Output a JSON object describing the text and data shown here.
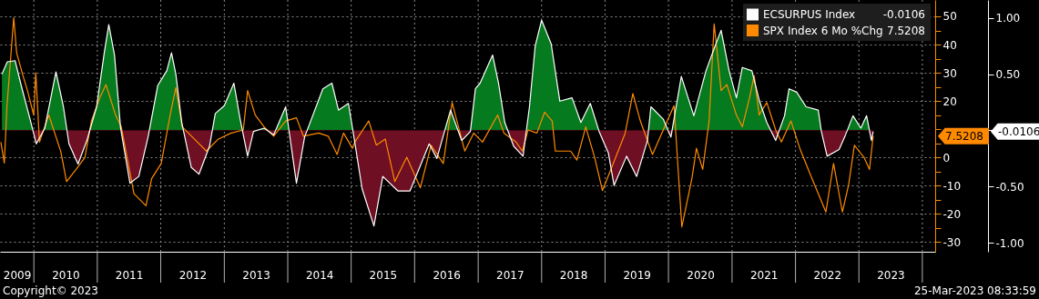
{
  "chart_data": {
    "type": "line",
    "annotations": [
      "-0.0106",
      "7.5208",
      "Copyright© 2023",
      "25-Mar-2023 08:33:59"
    ],
    "xlim": [
      "2009-06-20",
      "2024-03-15"
    ],
    "xticks": [
      {
        "value": "2009-09-25",
        "label": "2009"
      },
      {
        "value": "2010-07-02",
        "label": "2010"
      },
      {
        "value": "2011-07-02",
        "label": "2011"
      },
      {
        "value": "2012-07-02",
        "label": "2012"
      },
      {
        "value": "2013-07-02",
        "label": "2013"
      },
      {
        "value": "2014-07-02",
        "label": "2014"
      },
      {
        "value": "2015-07-02",
        "label": "2015"
      },
      {
        "value": "2016-07-02",
        "label": "2016"
      },
      {
        "value": "2017-07-02",
        "label": "2017"
      },
      {
        "value": "2018-07-02",
        "label": "2018"
      },
      {
        "value": "2019-07-02",
        "label": "2019"
      },
      {
        "value": "2020-07-02",
        "label": "2020"
      },
      {
        "value": "2021-07-02",
        "label": "2021"
      },
      {
        "value": "2022-07-02",
        "label": "2022"
      },
      {
        "value": "2023-07-02",
        "label": "2023"
      },
      {
        "value": "2010-01-01",
        "label": null
      },
      {
        "value": "2011-01-01",
        "label": null
      },
      {
        "value": "2012-01-01",
        "label": null
      },
      {
        "value": "2013-01-01",
        "label": null
      },
      {
        "value": "2014-01-01",
        "label": null
      },
      {
        "value": "2015-01-01",
        "label": null
      },
      {
        "value": "2016-01-01",
        "label": null
      },
      {
        "value": "2017-01-01",
        "label": null
      },
      {
        "value": "2018-01-01",
        "label": null
      },
      {
        "value": "2019-01-01",
        "label": null
      },
      {
        "value": "2020-01-01",
        "label": null
      },
      {
        "value": "2021-01-01",
        "label": null
      },
      {
        "value": "2022-01-01",
        "label": null
      },
      {
        "value": "2023-01-01",
        "label": null
      },
      {
        "value": "2024-01-01",
        "label": null
      }
    ],
    "ylim": [
      -33.5,
      55.8
    ],
    "yticks": [
      -30,
      -20,
      -10,
      0,
      {
        "value": 10,
        "label": null
      },
      20,
      30,
      40,
      50,
      {
        "value": -25,
        "label": null
      },
      {
        "value": -15,
        "label": null
      },
      {
        "value": -5,
        "label": null
      },
      {
        "value": 5,
        "label": null
      },
      {
        "value": 15,
        "label": null
      },
      {
        "value": 25,
        "label": null
      },
      {
        "value": 35,
        "label": null
      },
      {
        "value": 45,
        "label": null
      }
    ],
    "y2lim": [
      -1.08,
      1.16
    ],
    "y2ticks": [
      {
        "value": 1,
        "label": "1.00"
      },
      {
        "value": 0.5,
        "label": "0.50"
      },
      {
        "value": -0.5,
        "label": "-0.50"
      },
      {
        "value": -1,
        "label": "-1.00"
      },
      {
        "value": 0,
        "label": null
      }
    ],
    "grid": true,
    "legend": "top right",
    "series": [
      {
        "name": "ECSURPUS Index",
        "type": "area",
        "axis": "y2",
        "color": "#ffffff",
        "colors": [
          "#067a1e",
          "#067a1e",
          "#067a1e",
          "#067a1e",
          "#067a1e",
          "#6e0f23",
          "#067a1e",
          "#067a1e",
          "#067a1e",
          "#6e0f23",
          "#6e0f23",
          "#6e0f23",
          "#067a1e",
          "#067a1e",
          "#067a1e",
          "#067a1e",
          "#067a1e",
          "#6e0f23",
          "#6e0f23",
          "#6e0f23",
          "#067a1e",
          "#067a1e",
          "#067a1e",
          "#067a1e",
          "#067a1e",
          "#6e0f23",
          "#6e0f23",
          "#6e0f23",
          "#067a1e",
          "#067a1e",
          "#067a1e",
          "#067a1e",
          "#6e0f23",
          "#6e0f23",
          "#067a1e",
          "#6e0f23",
          "#067a1e",
          "#6e0f23",
          "#6e0f23",
          "#067a1e",
          "#067a1e",
          "#067a1e",
          "#067a1e",
          "#6e0f23",
          "#6e0f23",
          "#6e0f23",
          "#6e0f23",
          "#6e0f23",
          "#6e0f23",
          "#6e0f23",
          "#6e0f23",
          "#6e0f23",
          "#067a1e",
          "#6e0f23",
          "#6e0f23",
          "#067a1e",
          "#067a1e",
          "#067a1e",
          "#067a1e",
          "#067a1e",
          "#6e0f23",
          "#6e0f23",
          "#067a1e",
          "#067a1e",
          "#067a1e",
          "#067a1e",
          "#067a1e",
          "#067a1e",
          "#067a1e",
          "#067a1e",
          "#6e0f23",
          "#6e0f23",
          "#6e0f23",
          "#6e0f23",
          "#6e0f23",
          "#6e0f23",
          "#067a1e",
          "#067a1e",
          "#6e0f23",
          "#067a1e",
          "#067a1e",
          "#067a1e",
          "#067a1e",
          "#067a1e",
          "#067a1e",
          "#067a1e",
          "#067a1e",
          "#067a1e",
          "#067a1e",
          "#067a1e",
          "#6e0f23",
          "#067a1e",
          "#067a1e",
          "#067a1e",
          "#067a1e",
          "#067a1e",
          "#6e0f23",
          "#6e0f23",
          "#6e0f23",
          "#6e0f23",
          "#067a1e",
          "#067a1e",
          "#067a1e",
          "#6e0f23",
          "#6e0f23"
        ],
        "x": [
          "2009-07-01",
          "2009-08-01",
          "2009-09-15",
          "2009-10-20",
          "2009-12-10",
          "2010-01-15",
          "2010-03-05",
          "2010-05-08",
          "2010-06-20",
          "2010-07-22",
          "2010-09-12",
          "2010-11-02",
          "2010-12-28",
          "2011-02-10",
          "2011-03-08",
          "2011-04-10",
          "2011-05-15",
          "2011-07-08",
          "2011-08-28",
          "2011-10-20",
          "2011-12-15",
          "2012-02-05",
          "2012-03-03",
          "2012-03-28",
          "2012-05-01",
          "2012-06-25",
          "2012-08-08",
          "2012-10-08",
          "2012-11-10",
          "2013-01-01",
          "2013-02-25",
          "2013-04-02",
          "2013-05-15",
          "2013-06-18",
          "2013-08-18",
          "2013-10-12",
          "2013-12-20",
          "2014-02-20",
          "2014-04-08",
          "2014-07-22",
          "2014-09-12",
          "2014-10-20",
          "2014-12-16",
          "2015-01-15",
          "2015-03-05",
          "2015-05-12",
          "2015-07-02",
          "2015-09-28",
          "2015-12-05",
          "2016-01-22",
          "2016-03-25",
          "2016-05-08",
          "2016-07-26",
          "2016-09-28",
          "2016-11-17",
          "2016-12-16",
          "2017-01-12",
          "2017-03-25",
          "2017-04-28",
          "2017-06-03",
          "2017-07-24",
          "2017-09-16",
          "2017-10-23",
          "2017-11-25",
          "2018-01-01",
          "2018-02-25",
          "2018-04-16",
          "2018-06-25",
          "2018-08-15",
          "2018-10-08",
          "2018-11-28",
          "2019-01-20",
          "2019-02-22",
          "2019-05-05",
          "2019-07-02",
          "2019-09-02",
          "2019-09-22",
          "2019-12-02",
          "2020-01-15",
          "2020-03-15",
          "2020-05-26",
          "2020-08-04",
          "2020-09-25",
          "2020-10-30",
          "2020-12-15",
          "2021-01-26",
          "2021-03-01",
          "2021-04-25",
          "2021-06-08",
          "2021-07-20",
          "2021-09-09",
          "2021-10-30",
          "2021-11-25",
          "2022-01-08",
          "2022-03-03",
          "2022-05-12",
          "2022-05-30",
          "2022-07-02",
          "2022-09-09",
          "2022-10-16",
          "2022-11-28",
          "2023-01-12",
          "2023-02-14",
          "2023-03-14",
          "2023-03-24"
        ],
        "values": [
          0.5,
          0.61,
          0.62,
          0.4,
          0.1,
          -0.12,
          0.02,
          0.52,
          0.21,
          -0.12,
          -0.3,
          -0.09,
          0.21,
          0.69,
          0.94,
          0.67,
          0.02,
          -0.47,
          -0.41,
          -0.06,
          0.4,
          0.53,
          0.69,
          0.5,
          0.07,
          -0.33,
          -0.39,
          -0.14,
          0.15,
          0.22,
          0.42,
          0.1,
          -0.23,
          -0.01,
          0.02,
          -0.04,
          0.21,
          -0.47,
          -0.06,
          0.37,
          0.42,
          0.18,
          0.24,
          -0.04,
          -0.52,
          -0.85,
          -0.41,
          -0.54,
          -0.54,
          -0.36,
          -0.12,
          -0.25,
          0.18,
          -0.09,
          -0.01,
          0.37,
          0.42,
          0.67,
          0.42,
          0.07,
          -0.14,
          -0.23,
          0.21,
          0.75,
          0.98,
          0.77,
          0.26,
          0.29,
          0.07,
          0.24,
          -0.01,
          -0.2,
          -0.49,
          -0.23,
          -0.41,
          -0.09,
          0.21,
          0.1,
          -0.06,
          0.48,
          0.13,
          0.53,
          0.75,
          0.89,
          0.53,
          0.29,
          0.56,
          0.53,
          0.26,
          0.07,
          -0.09,
          0.13,
          0.37,
          0.34,
          0.21,
          0.18,
          -0.01,
          -0.23,
          -0.17,
          -0.04,
          0.13,
          0.02,
          0.13,
          -0.09,
          -0.0106
        ]
      },
      {
        "name": "SPX Index 6 Mo %Chg",
        "color": "#ff8a00",
        "x": [
          "2009-06-25",
          "2009-07-15",
          "2009-07-30",
          "2009-09-07",
          "2009-09-24",
          "2009-10-30",
          "2009-11-25",
          "2009-12-31",
          "2010-01-12",
          "2010-02-02",
          "2010-03-28",
          "2010-06-05",
          "2010-07-08",
          "2010-09-01",
          "2010-10-22",
          "2010-11-28",
          "2011-01-18",
          "2011-02-20",
          "2011-04-16",
          "2011-05-19",
          "2011-07-31",
          "2011-10-08",
          "2011-11-10",
          "2012-01-04",
          "2012-02-24",
          "2012-03-28",
          "2012-05-04",
          "2012-07-12",
          "2012-09-20",
          "2012-11-28",
          "2013-02-10",
          "2013-04-20",
          "2013-05-15",
          "2013-06-28",
          "2013-08-18",
          "2013-10-12",
          "2013-12-20",
          "2014-02-20",
          "2014-04-01",
          "2014-06-28",
          "2014-08-22",
          "2014-10-12",
          "2014-11-18",
          "2015-01-08",
          "2015-01-22",
          "2015-04-12",
          "2015-05-26",
          "2015-07-16",
          "2015-09-09",
          "2015-11-17",
          "2016-02-03",
          "2016-04-05",
          "2016-06-14",
          "2016-08-04",
          "2016-10-16",
          "2016-12-06",
          "2017-01-26",
          "2017-04-23",
          "2017-05-29",
          "2017-08-07",
          "2017-09-12",
          "2017-10-15",
          "2017-12-05",
          "2018-01-18",
          "2018-03-03",
          "2018-03-21",
          "2018-06-17",
          "2018-07-23",
          "2018-09-12",
          "2018-11-02",
          "2018-12-17",
          "2019-02-17",
          "2019-04-27",
          "2019-06-10",
          "2019-07-23",
          "2019-10-01",
          "2019-11-24",
          "2020-02-02",
          "2020-03-18",
          "2020-05-15",
          "2020-06-10",
          "2020-07-16",
          "2020-08-22",
          "2020-09-20",
          "2020-10-30",
          "2020-12-02",
          "2021-01-26",
          "2021-03-01",
          "2021-04-13",
          "2021-05-08",
          "2021-06-06",
          "2021-07-20",
          "2021-09-09",
          "2021-10-12",
          "2021-12-06",
          "2022-01-26",
          "2022-03-22",
          "2022-05-12",
          "2022-06-25",
          "2022-08-08",
          "2022-09-28",
          "2022-11-03",
          "2022-12-06",
          "2023-01-30",
          "2023-03-03",
          "2023-03-24"
        ],
        "values": [
          5.4,
          -2,
          18,
          49.5,
          37,
          29,
          23.7,
          15,
          30,
          5.4,
          15,
          2,
          -8.6,
          -4.3,
          0,
          12.9,
          21.5,
          25.8,
          15,
          10.8,
          -12.9,
          -17.2,
          -7.5,
          -2.2,
          15,
          24.7,
          10.8,
          6.5,
          2.2,
          6.5,
          8.6,
          9.7,
          23.7,
          15,
          10.8,
          7.5,
          12.9,
          14,
          7.5,
          8.6,
          7.5,
          1,
          8.6,
          3.2,
          5.4,
          12.9,
          4.3,
          6.5,
          -8.6,
          0,
          -10.8,
          4.3,
          -2.2,
          19.4,
          2.2,
          8.6,
          5.4,
          15,
          8.6,
          5.4,
          2.2,
          9.7,
          8.6,
          16,
          12.9,
          2.2,
          2.2,
          -1,
          10.8,
          0,
          -11.8,
          -2.2,
          8.6,
          22.6,
          12.9,
          1,
          8.6,
          18.3,
          -24.7,
          -7.5,
          3.2,
          -4.3,
          12.9,
          47.3,
          23.7,
          25.8,
          15,
          10.8,
          21.5,
          29,
          15,
          19.4,
          9.7,
          5.4,
          12.9,
          3.2,
          -5.3,
          -12.9,
          -19.4,
          -2.2,
          -19.4,
          -9.7,
          4.3,
          0,
          -4.3,
          7.5208
        ]
      }
    ]
  }
}
